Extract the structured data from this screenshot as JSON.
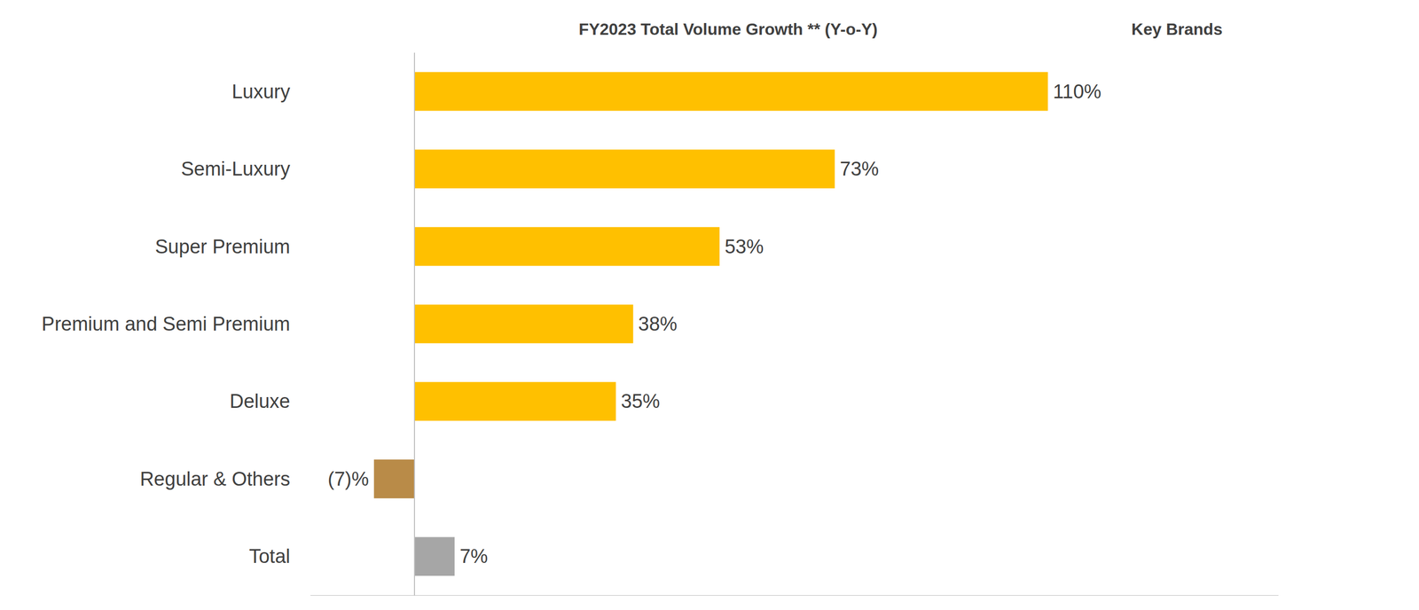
{
  "chart_data": {
    "type": "bar",
    "orientation": "horizontal",
    "title": "FY2023 Total Volume Growth ** (Y-o-Y)",
    "annotations": [
      "Key Brands"
    ],
    "categories": [
      "Luxury",
      "Semi-Luxury",
      "Super Premium",
      "Premium and Semi Premium",
      "Deluxe",
      "Regular & Others",
      "Total"
    ],
    "values": [
      110,
      73,
      53,
      38,
      35,
      -7,
      7
    ],
    "value_labels": [
      "110%",
      "73%",
      "53%",
      "38%",
      "35%",
      "(7)%",
      "7%"
    ],
    "colors": [
      "#ffc000",
      "#ffc000",
      "#ffc000",
      "#ffc000",
      "#ffc000",
      "#b98b48",
      "#a6a6a6"
    ],
    "xlim": [
      -18,
      150
    ],
    "xticks": [
      0
    ],
    "data_labels": true,
    "tick_labels": "y",
    "grid": false
  }
}
